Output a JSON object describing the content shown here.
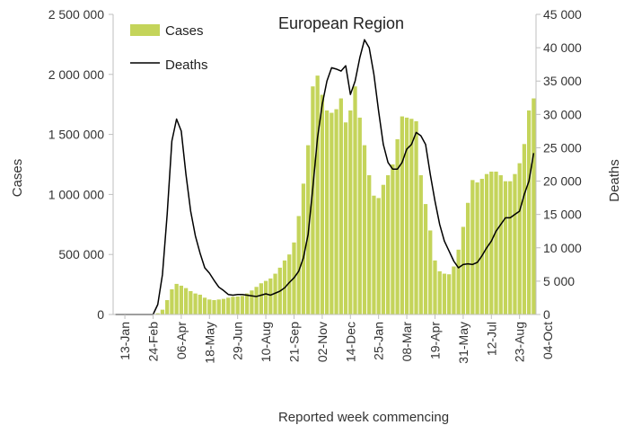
{
  "chart_data": {
    "type": "bar",
    "title": "European Region",
    "xlabel": "Reported week commencing",
    "ylabel": "Cases",
    "y2label": "Deaths",
    "ylim": [
      0,
      2500000
    ],
    "y2lim": [
      0,
      45000
    ],
    "yticks": [
      "0",
      "500 000",
      "1 000 000",
      "1 500 000",
      "2 000 000",
      "2 500 000"
    ],
    "y2ticks": [
      "0",
      "5 000",
      "10 000",
      "15 000",
      "20 000",
      "25 000",
      "30 000",
      "35 000",
      "40 000",
      "45 000"
    ],
    "xticks": [
      "13-Jan",
      "24-Feb",
      "06-Apr",
      "18-May",
      "29-Jun",
      "10-Aug",
      "21-Sep",
      "02-Nov",
      "14-Dec",
      "25-Jan",
      "08-Mar",
      "19-Apr",
      "31-May",
      "12-Jul",
      "23-Aug",
      "04-Oct"
    ],
    "legend": [
      "Cases",
      "Deaths"
    ],
    "legend_position": "top-left",
    "colors": {
      "cases": "#c4d45a",
      "deaths": "#000000",
      "axis": "#bfbfbf"
    },
    "series": [
      {
        "name": "Cases",
        "type": "bar",
        "values": [
          0,
          0,
          0,
          0,
          0,
          0,
          0,
          0,
          0,
          10000,
          40000,
          120000,
          210000,
          255000,
          240000,
          220000,
          195000,
          175000,
          165000,
          140000,
          125000,
          120000,
          125000,
          130000,
          140000,
          148000,
          150000,
          155000,
          175000,
          200000,
          230000,
          260000,
          280000,
          300000,
          340000,
          390000,
          450000,
          500000,
          600000,
          820000,
          1090000,
          1410000,
          1900000,
          1990000,
          1830000,
          1700000,
          1680000,
          1710000,
          1800000,
          1600000,
          1700000,
          1900000,
          1640000,
          1410000,
          1160000,
          990000,
          970000,
          1080000,
          1160000,
          1250000,
          1460000,
          1650000,
          1640000,
          1630000,
          1610000,
          1160000,
          920000,
          700000,
          450000,
          360000,
          340000,
          335000,
          400000,
          540000,
          730000,
          930000,
          1120000,
          1100000,
          1130000,
          1170000,
          1190000,
          1190000,
          1160000,
          1110000,
          1110000,
          1170000,
          1260000,
          1420000,
          1700000,
          1800000
        ]
      },
      {
        "name": "Deaths",
        "type": "line",
        "axis": "right",
        "values": [
          0,
          0,
          0,
          0,
          0,
          0,
          0,
          0,
          0,
          1500,
          6000,
          15000,
          26000,
          29300,
          27500,
          21000,
          15500,
          11800,
          9200,
          7000,
          6200,
          5100,
          4100,
          3600,
          3000,
          2900,
          3000,
          3000,
          2900,
          2800,
          2700,
          2900,
          3100,
          2900,
          3200,
          3500,
          4000,
          4800,
          5500,
          6500,
          8500,
          12000,
          19000,
          26500,
          31500,
          35000,
          37000,
          36800,
          36500,
          37300,
          33000,
          35000,
          38500,
          41200,
          40000,
          36000,
          30500,
          25500,
          22800,
          21800,
          21800,
          22800,
          24800,
          25500,
          27300,
          26800,
          25500,
          21000,
          17000,
          13500,
          11000,
          9500,
          8000,
          7000,
          7500,
          7600,
          7500,
          7800,
          8800,
          10000,
          11000,
          12500,
          13500,
          14500,
          14500,
          15000,
          15500,
          18000,
          20000,
          24200
        ]
      }
    ]
  }
}
